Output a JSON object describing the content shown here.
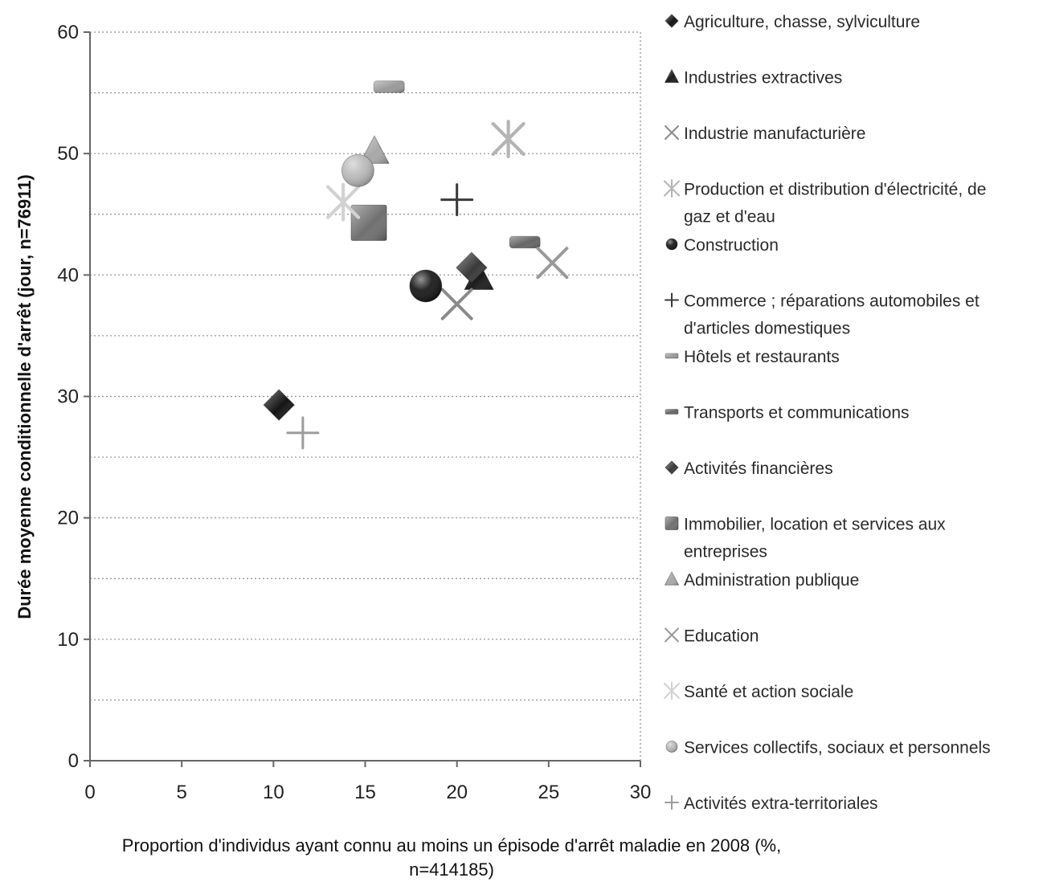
{
  "chart_data": {
    "type": "scatter",
    "xlabel": "Proportion d'individus  ayant  connu  au moins  un  épisode  d'arrêt maladie  en 2008 (%,",
    "xlabel_line2": "n=414185)",
    "ylabel": "Durée moyenne conditionnelle d'arrêt (jour, n=76911)",
    "xlim": [
      0,
      30
    ],
    "ylim": [
      0,
      60
    ],
    "x_ticks": [
      "0",
      "5",
      "10",
      "15",
      "20",
      "25",
      "30"
    ],
    "y_ticks": [
      "0",
      "10",
      "20",
      "30",
      "40",
      "50",
      "60"
    ],
    "grid": "horizontal dotted",
    "legend_position": "right",
    "series": [
      {
        "name": "Agriculture, chasse, sylviculture",
        "marker": "diamond",
        "color": "#151515",
        "x": 10.3,
        "y": 29.3
      },
      {
        "name": "Industries extractives",
        "marker": "triangle",
        "color": "#1c1c1c",
        "x": 21.2,
        "y": 39.8
      },
      {
        "name": "Industrie manufacturière",
        "marker": "x",
        "color": "#8a8a8a",
        "x": 20.0,
        "y": 37.6
      },
      {
        "name": "Production et distribution  d'électricité, de gaz et d'eau",
        "label_lines": [
          "Production  et distribution  d'électricité, de",
          "gaz et d'eau"
        ],
        "marker": "asterisk",
        "color": "#b4b4b4",
        "x": 22.8,
        "y": 51.2
      },
      {
        "name": "Construction",
        "marker": "circle",
        "color": "#111111",
        "x": 18.3,
        "y": 39.1
      },
      {
        "name": "Commerce ; réparations  automobiles et d'articles domestiques",
        "label_lines": [
          "Commerce ; réparations  automobiles et",
          "d'articles domestiques"
        ],
        "marker": "plus",
        "color": "#3a3a3a",
        "x": 20.0,
        "y": 46.2
      },
      {
        "name": "Hôtels et restaurants",
        "marker": "dash",
        "color": "#9a9a9a",
        "x": 16.3,
        "y": 55.5
      },
      {
        "name": "Transports et communications",
        "marker": "dash",
        "color": "#666666",
        "x": 23.7,
        "y": 42.7
      },
      {
        "name": "Activités financières",
        "marker": "diamond",
        "color": "#3a3a3a",
        "x": 20.8,
        "y": 40.6
      },
      {
        "name": "Immobilier, location et services aux entreprises",
        "label_lines": [
          "Immobilier, location et services aux",
          "entreprises"
        ],
        "marker": "square",
        "color": "#707070",
        "x": 15.2,
        "y": 44.3
      },
      {
        "name": "Administration publique",
        "marker": "triangle",
        "color": "#a8a8a8",
        "x": 15.5,
        "y": 50.2
      },
      {
        "name": "Education",
        "marker": "x",
        "color": "#999999",
        "x": 25.2,
        "y": 41.0
      },
      {
        "name": "Santé et action sociale",
        "marker": "asterisk",
        "color": "#d2d2d2",
        "x": 13.8,
        "y": 46.0
      },
      {
        "name": "Services collectifs, sociaux et personnels",
        "marker": "circle",
        "color": "#b8b8b8",
        "x": 14.6,
        "y": 48.6
      },
      {
        "name": "Activités extra-territoriales",
        "marker": "plus",
        "color": "#9c9c9c",
        "x": 11.6,
        "y": 27.0
      }
    ]
  }
}
